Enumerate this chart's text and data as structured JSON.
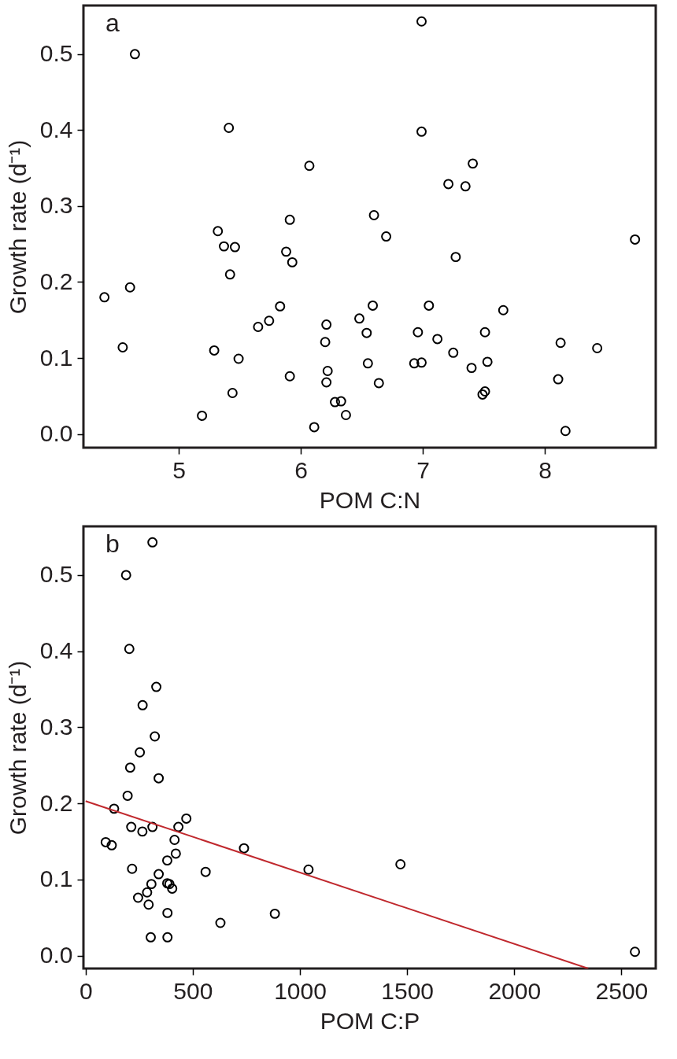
{
  "chart_data": [
    {
      "type": "scatter",
      "xlabel": "POM C:N",
      "ylabel": "Growth rate (d⁻¹)",
      "annotations": [
        "a"
      ],
      "xlim": [
        4.218,
        8.91
      ],
      "ylim": [
        -0.018,
        0.564
      ],
      "xticks": [
        5,
        6,
        7,
        8
      ],
      "yticks": [
        {
          "value": 0,
          "label": "0.0"
        },
        {
          "value": 0.1,
          "label": "0.1"
        },
        {
          "value": 0.2,
          "label": "0.2"
        },
        {
          "value": 0.3,
          "label": "0.3"
        },
        {
          "value": 0.4,
          "label": "0.4"
        },
        {
          "value": 0.5,
          "label": "0.5"
        }
      ],
      "series": [
        {
          "color": "#000000",
          "marker": "circle",
          "x": [
            4.64,
            5.41,
            6.07,
            5.91,
            5.32,
            5.37,
            5.46,
            5.88,
            5.93,
            5.42,
            4.6,
            4.39,
            5.83,
            5.74,
            5.65,
            6.21,
            6.48,
            6.2,
            4.54,
            5.29,
            5.49,
            5.91,
            6.22,
            6.21,
            5.44,
            6.28,
            6.33,
            5.19,
            6.37,
            6.11,
            6.99,
            6.99,
            7.41,
            7.21,
            7.35,
            6.6,
            6.7,
            8.74,
            7.27,
            6.59,
            7.05,
            7.66,
            6.54,
            6.96,
            7.51,
            7.12,
            8.13,
            8.43,
            7.25,
            6.55,
            6.93,
            6.99,
            7.53,
            7.4,
            6.64,
            8.11,
            7.51,
            7.49,
            8.17
          ],
          "values": [
            0.5,
            0.403,
            0.353,
            0.282,
            0.267,
            0.247,
            0.246,
            0.24,
            0.226,
            0.21,
            0.193,
            0.18,
            0.168,
            0.149,
            0.141,
            0.144,
            0.152,
            0.121,
            0.114,
            0.11,
            0.099,
            0.076,
            0.083,
            0.068,
            0.054,
            0.042,
            0.043,
            0.024,
            0.025,
            0.009,
            0.543,
            0.398,
            0.356,
            0.329,
            0.326,
            0.288,
            0.26,
            0.256,
            0.233,
            0.169,
            0.169,
            0.163,
            0.133,
            0.134,
            0.134,
            0.125,
            0.12,
            0.113,
            0.107,
            0.093,
            0.093,
            0.094,
            0.095,
            0.087,
            0.067,
            0.072,
            0.056,
            0.052,
            0.004
          ]
        }
      ]
    },
    {
      "type": "scatter",
      "xlabel": "POM C:P",
      "ylabel": "Growth rate (d⁻¹)",
      "annotations": [
        "b"
      ],
      "xlim": [
        -10,
        2660
      ],
      "ylim": [
        -0.017,
        0.564
      ],
      "xticks": [
        0,
        500,
        1000,
        1500,
        2000,
        2500
      ],
      "yticks": [
        {
          "value": 0,
          "label": "0.0"
        },
        {
          "value": 0.1,
          "label": "0.1"
        },
        {
          "value": 0.2,
          "label": "0.2"
        },
        {
          "value": 0.3,
          "label": "0.3"
        },
        {
          "value": 0.4,
          "label": "0.4"
        },
        {
          "value": 0.5,
          "label": "0.5"
        }
      ],
      "series": [
        {
          "color": "#000000",
          "marker": "circle",
          "x": [
            312,
            189,
            204,
            330,
            266,
            323,
            253,
            208,
            341,
            196,
            133,
            470,
            213,
            312,
            433,
            265,
            415,
            94,
            122,
            739,
            421,
            381,
            1040,
            217,
            560,
            341,
            307,
            381,
            391,
            287,
            404,
            245,
            294,
            382,
            883,
            629,
            304,
            382,
            1469,
            2563
          ],
          "values": [
            0.543,
            0.5,
            0.403,
            0.353,
            0.329,
            0.288,
            0.267,
            0.247,
            0.233,
            0.21,
            0.193,
            0.18,
            0.169,
            0.169,
            0.169,
            0.163,
            0.152,
            0.149,
            0.145,
            0.141,
            0.134,
            0.125,
            0.113,
            0.114,
            0.11,
            0.107,
            0.094,
            0.095,
            0.094,
            0.083,
            0.088,
            0.076,
            0.067,
            0.056,
            0.055,
            0.043,
            0.024,
            0.024,
            0.12,
            0.005
          ]
        },
        {
          "type": "line",
          "color": "#c0282d",
          "x": [
            0,
            2345
          ],
          "values": [
            0.203,
            -0.017
          ]
        }
      ]
    }
  ]
}
